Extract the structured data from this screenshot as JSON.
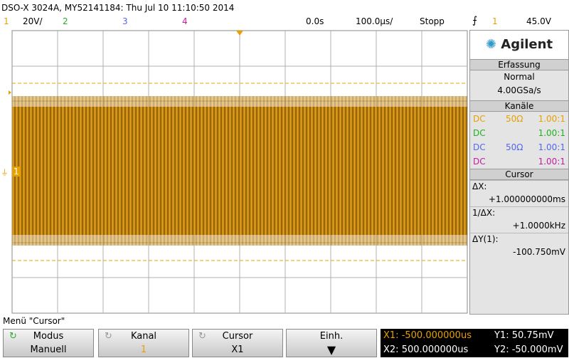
{
  "header": {
    "title": "DSO-X 3024A, MY52141184: Thu Jul 10 11:10:50 2014",
    "channels": [
      {
        "label": "1",
        "scale": "20V/"
      },
      {
        "label": "2"
      },
      {
        "label": "3"
      },
      {
        "label": "4"
      }
    ],
    "time_position": "0.0s",
    "time_scale": "100.0µs/",
    "run_state": "Stopp",
    "trigger_source": "1",
    "trigger_level": "45.0V"
  },
  "screen": {
    "ground_marker": "1"
  },
  "panel": {
    "brand": "Agilent",
    "acquisition": {
      "title": "Erfassung",
      "mode": "Normal",
      "rate": "4.00GSa/s"
    },
    "channels": {
      "title": "Kanäle",
      "rows": [
        [
          "DC",
          "50Ω",
          "1.00:1"
        ],
        [
          "DC",
          "",
          "1.00:1"
        ],
        [
          "DC",
          "50Ω",
          "1.00:1"
        ],
        [
          "DC",
          "",
          "1.00:1"
        ]
      ]
    },
    "cursor": {
      "title": "Cursor",
      "items": [
        {
          "label": "ΔX:",
          "value": "+1.000000000ms"
        },
        {
          "label": "1/ΔX:",
          "value": "+1.0000kHz"
        },
        {
          "label": "ΔY(1):",
          "value": "-100.750mV"
        }
      ]
    }
  },
  "footer": {
    "menu": "Menü \"Cursor\"",
    "buttons": [
      {
        "label": "Modus",
        "value": "Manuell"
      },
      {
        "label": "Kanal",
        "value": "1"
      },
      {
        "label": "Cursor",
        "value": "X1"
      },
      {
        "label": "Einh."
      }
    ],
    "readouts": [
      "X1: -500.000000us",
      "X2: 500.000000us",
      "Y1: 50.75mV",
      "Y2: -50.000mV"
    ]
  }
}
